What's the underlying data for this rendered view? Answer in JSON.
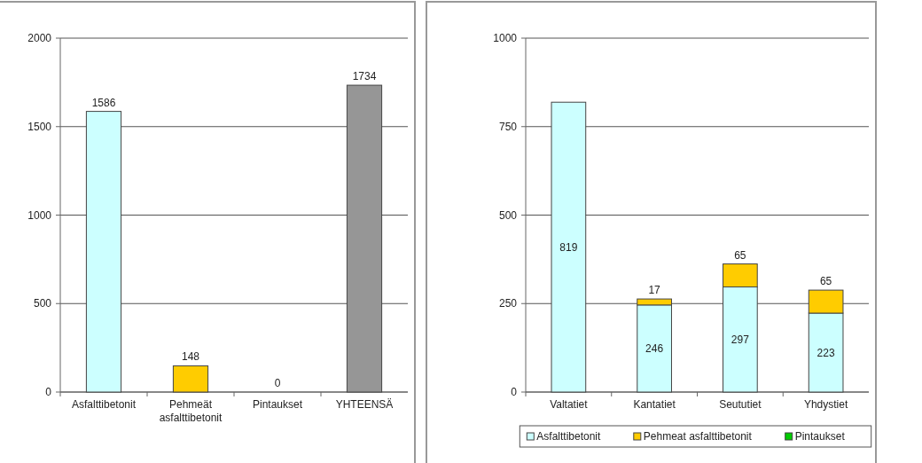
{
  "chart_data": [
    {
      "type": "bar",
      "categories": [
        "Asfalttibetonit",
        "Pehmeät asfalttibetonit",
        "Pintaukset",
        "YHTEENSÄ"
      ],
      "values": [
        1586,
        148,
        0,
        1734
      ],
      "colors": [
        "#ccffff",
        "#ffcc00",
        "#00cc00",
        "#969696"
      ],
      "ylim": [
        0,
        2000
      ],
      "yticks": [
        0,
        500,
        1000,
        1500,
        2000
      ],
      "grid": "y",
      "data_labels": true
    },
    {
      "type": "bar",
      "stacked": true,
      "categories": [
        "Valtatiet",
        "Kantatiet",
        "Seututiet",
        "Yhdystiet"
      ],
      "series": [
        {
          "name": "Asfalttibetonit",
          "color": "#ccffff",
          "values": [
            819,
            246,
            297,
            223
          ],
          "value_labels": [
            "819",
            "246",
            "297",
            "223"
          ]
        },
        {
          "name": "Pehmeat asfalttibetonit",
          "color": "#ffcc00",
          "values": [
            0,
            17,
            65,
            65
          ],
          "value_labels": [
            null,
            "17",
            "65",
            "65"
          ]
        },
        {
          "name": "Pintaukset",
          "color": "#00cc00",
          "values": [
            0,
            0,
            0,
            0
          ],
          "value_labels": [
            null,
            null,
            null,
            null
          ]
        }
      ],
      "ylim": [
        0,
        1000
      ],
      "yticks": [
        0,
        250,
        500,
        750,
        1000
      ],
      "grid": "y",
      "legend": "bottom"
    }
  ]
}
